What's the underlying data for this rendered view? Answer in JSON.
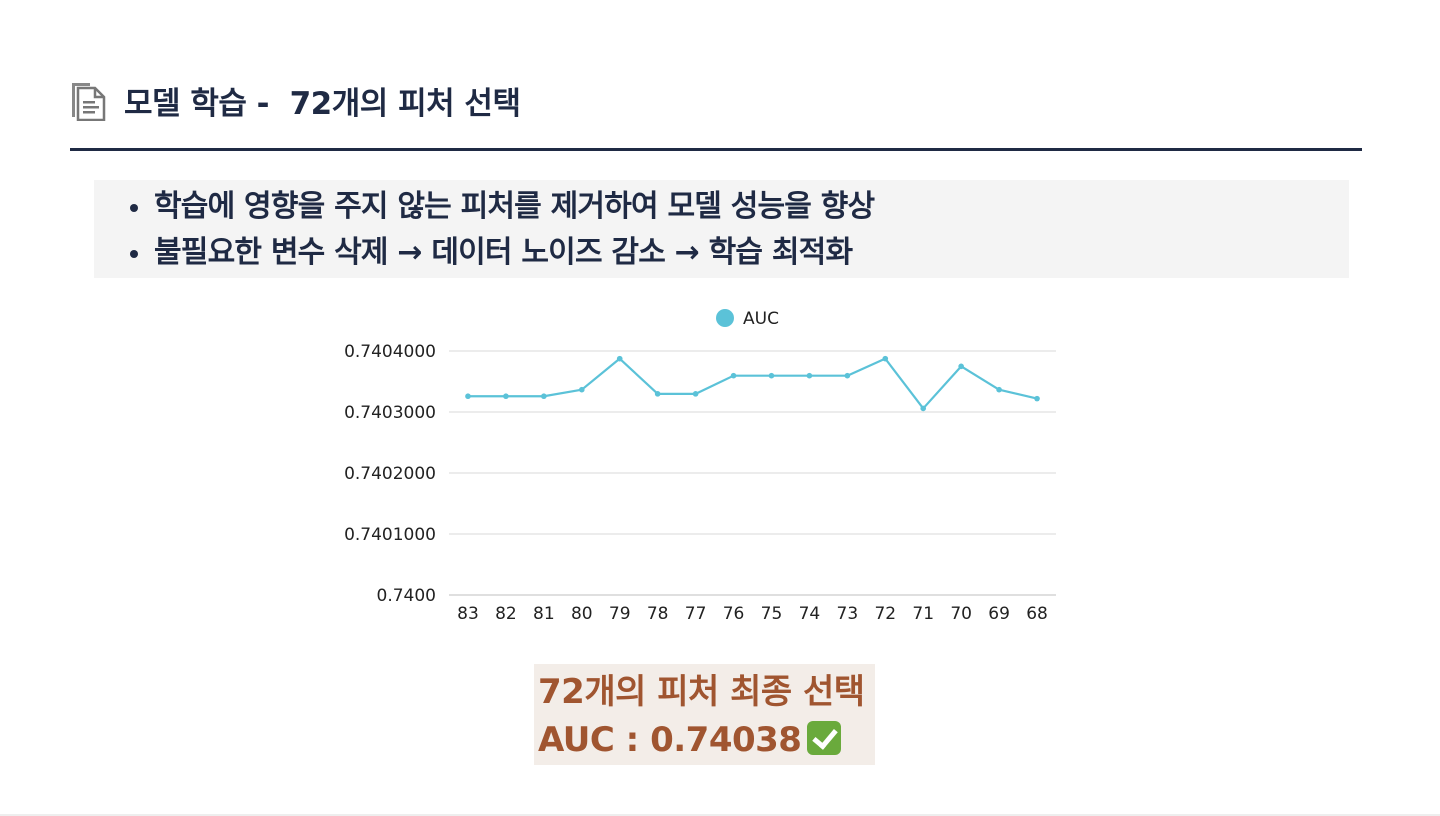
{
  "header": {
    "title": "모델 학습 -  72개의 피처 선택",
    "icon": "document-icon"
  },
  "bullets": [
    "학습에 영향을 주지 않는 피처를 제거하여 모델 성능을 향상",
    "불필요한 변수 삭제 → 데이터 노이즈 감소 → 학습 최적화"
  ],
  "chart_data": {
    "type": "line",
    "categories": [
      "83",
      "82",
      "81",
      "80",
      "79",
      "78",
      "77",
      "76",
      "75",
      "74",
      "73",
      "72",
      "71",
      "70",
      "69",
      "68"
    ],
    "series": [
      {
        "name": "AUC",
        "color": "#5bc2d8",
        "values": [
          0.74032585,
          0.74032585,
          0.74032585,
          0.74033657,
          0.74038745,
          0.74032974,
          0.74032974,
          0.74035952,
          0.74035952,
          0.74035952,
          0.74035952,
          0.74038745,
          0.74030584,
          0.74037485,
          0.74033657,
          0.74032194
        ]
      }
    ],
    "yticks": [
      "0.7404000",
      "0.7403000",
      "0.7402000",
      "0.7401000",
      "0.7400"
    ],
    "ylim": [
      0.74,
      0.7404
    ],
    "legend": "top",
    "grid": true
  },
  "result": {
    "line1": "72개의 피처 최종 선택",
    "line2": "AUC : 0.74038",
    "icon": "check-mark-icon"
  }
}
